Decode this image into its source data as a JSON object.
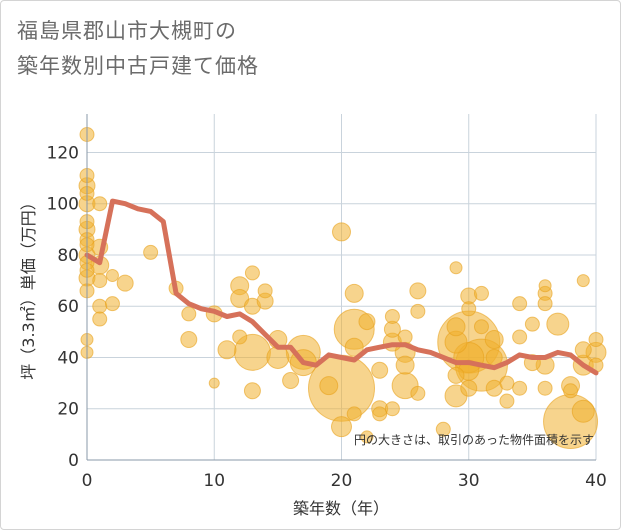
{
  "title_lines": [
    "福島県郡山市大槻町の",
    "築年数別中古戸建て価格"
  ],
  "chart_data": {
    "type": "scatter",
    "title": "福島県郡山市大槻町の築年数別中古戸建て価格",
    "xlabel": "築年数（年）",
    "ylabel": "坪（3.3㎡）単価（万円）",
    "xlim": [
      0,
      40
    ],
    "ylim": [
      0,
      135
    ],
    "x_ticks": [
      0,
      10,
      20,
      30,
      40
    ],
    "y_ticks": [
      0,
      20,
      40,
      60,
      80,
      100,
      120
    ],
    "grid": true,
    "note": "円の大きさは、取引のあった物件面積を示す",
    "colors": {
      "bubble": "#f0b030",
      "line": "#d6715a",
      "grid": "#c9d3dc"
    },
    "series": [
      {
        "kind": "line",
        "x": [
          0,
          1,
          2,
          3,
          4,
          5,
          6,
          7,
          8,
          9,
          10,
          11,
          12,
          13,
          14,
          15,
          16,
          17,
          18,
          19,
          20,
          21,
          22,
          23,
          24,
          25,
          26,
          27,
          28,
          29,
          30,
          31,
          32,
          33,
          34,
          35,
          36,
          37,
          38,
          39,
          40
        ],
        "y": [
          80,
          77,
          101,
          100,
          98,
          97,
          93,
          65,
          61,
          59,
          58,
          56,
          57,
          54,
          49,
          44,
          44,
          38,
          37,
          41,
          40,
          39,
          43,
          44,
          45,
          45,
          43,
          42,
          40,
          38,
          38,
          37,
          36,
          38,
          41,
          40,
          40,
          42,
          41,
          37,
          34
        ]
      },
      {
        "kind": "bubble",
        "points": [
          {
            "x": 0,
            "y": 127,
            "s": 7
          },
          {
            "x": 0,
            "y": 111,
            "s": 7
          },
          {
            "x": 0,
            "y": 107,
            "s": 8
          },
          {
            "x": 0,
            "y": 104,
            "s": 7
          },
          {
            "x": 0,
            "y": 100,
            "s": 8
          },
          {
            "x": 0,
            "y": 93,
            "s": 7
          },
          {
            "x": 0,
            "y": 90,
            "s": 8
          },
          {
            "x": 0,
            "y": 86,
            "s": 7
          },
          {
            "x": 0,
            "y": 84,
            "s": 7
          },
          {
            "x": 0,
            "y": 80,
            "s": 8
          },
          {
            "x": 0,
            "y": 77,
            "s": 7
          },
          {
            "x": 0,
            "y": 74,
            "s": 7
          },
          {
            "x": 0,
            "y": 71,
            "s": 8
          },
          {
            "x": 0,
            "y": 66,
            "s": 7
          },
          {
            "x": 0,
            "y": 47,
            "s": 6
          },
          {
            "x": 0,
            "y": 42,
            "s": 6
          },
          {
            "x": 1,
            "y": 100,
            "s": 7
          },
          {
            "x": 1,
            "y": 83,
            "s": 8
          },
          {
            "x": 1,
            "y": 76,
            "s": 9
          },
          {
            "x": 1,
            "y": 70,
            "s": 7
          },
          {
            "x": 1,
            "y": 60,
            "s": 7
          },
          {
            "x": 1,
            "y": 55,
            "s": 7
          },
          {
            "x": 2,
            "y": 61,
            "s": 7
          },
          {
            "x": 2,
            "y": 72,
            "s": 6
          },
          {
            "x": 3,
            "y": 69,
            "s": 8
          },
          {
            "x": 5,
            "y": 81,
            "s": 7
          },
          {
            "x": 7,
            "y": 67,
            "s": 7
          },
          {
            "x": 8,
            "y": 57,
            "s": 7
          },
          {
            "x": 8,
            "y": 47,
            "s": 8
          },
          {
            "x": 10,
            "y": 57,
            "s": 8
          },
          {
            "x": 10,
            "y": 30,
            "s": 5
          },
          {
            "x": 11,
            "y": 43,
            "s": 9
          },
          {
            "x": 12,
            "y": 68,
            "s": 9
          },
          {
            "x": 12,
            "y": 63,
            "s": 9
          },
          {
            "x": 12,
            "y": 48,
            "s": 7
          },
          {
            "x": 13,
            "y": 73,
            "s": 7
          },
          {
            "x": 13,
            "y": 60,
            "s": 8
          },
          {
            "x": 13,
            "y": 42,
            "s": 18
          },
          {
            "x": 13,
            "y": 27,
            "s": 8
          },
          {
            "x": 14,
            "y": 66,
            "s": 7
          },
          {
            "x": 14,
            "y": 62,
            "s": 8
          },
          {
            "x": 15,
            "y": 47,
            "s": 9
          },
          {
            "x": 15,
            "y": 40,
            "s": 11
          },
          {
            "x": 16,
            "y": 31,
            "s": 8
          },
          {
            "x": 17,
            "y": 42,
            "s": 17
          },
          {
            "x": 17,
            "y": 38,
            "s": 13
          },
          {
            "x": 19,
            "y": 29,
            "s": 9
          },
          {
            "x": 20,
            "y": 89,
            "s": 9
          },
          {
            "x": 20,
            "y": 28,
            "s": 33
          },
          {
            "x": 20,
            "y": 13,
            "s": 10
          },
          {
            "x": 21,
            "y": 65,
            "s": 9
          },
          {
            "x": 21,
            "y": 51,
            "s": 20
          },
          {
            "x": 21,
            "y": 44,
            "s": 9
          },
          {
            "x": 21,
            "y": 18,
            "s": 7
          },
          {
            "x": 22,
            "y": 54,
            "s": 8
          },
          {
            "x": 22,
            "y": 9,
            "s": 6
          },
          {
            "x": 23,
            "y": 35,
            "s": 8
          },
          {
            "x": 23,
            "y": 20,
            "s": 8
          },
          {
            "x": 23,
            "y": 18,
            "s": 7
          },
          {
            "x": 24,
            "y": 56,
            "s": 7
          },
          {
            "x": 24,
            "y": 51,
            "s": 8
          },
          {
            "x": 24,
            "y": 46,
            "s": 9
          },
          {
            "x": 24,
            "y": 20,
            "s": 7
          },
          {
            "x": 25,
            "y": 48,
            "s": 7
          },
          {
            "x": 25,
            "y": 42,
            "s": 10
          },
          {
            "x": 25,
            "y": 37,
            "s": 9
          },
          {
            "x": 25,
            "y": 29,
            "s": 13
          },
          {
            "x": 26,
            "y": 66,
            "s": 8
          },
          {
            "x": 26,
            "y": 58,
            "s": 7
          },
          {
            "x": 26,
            "y": 26,
            "s": 7
          },
          {
            "x": 28,
            "y": 12,
            "s": 7
          },
          {
            "x": 29,
            "y": 75,
            "s": 6
          },
          {
            "x": 29,
            "y": 52,
            "s": 9
          },
          {
            "x": 29,
            "y": 46,
            "s": 11
          },
          {
            "x": 29,
            "y": 33,
            "s": 8
          },
          {
            "x": 29,
            "y": 25,
            "s": 11
          },
          {
            "x": 30,
            "y": 64,
            "s": 8
          },
          {
            "x": 30,
            "y": 59,
            "s": 7
          },
          {
            "x": 30,
            "y": 46,
            "s": 31
          },
          {
            "x": 30,
            "y": 40,
            "s": 15
          },
          {
            "x": 30,
            "y": 35,
            "s": 10
          },
          {
            "x": 30,
            "y": 28,
            "s": 8
          },
          {
            "x": 31,
            "y": 65,
            "s": 7
          },
          {
            "x": 31,
            "y": 52,
            "s": 7
          },
          {
            "x": 31,
            "y": 37,
            "s": 26
          },
          {
            "x": 32,
            "y": 47,
            "s": 9
          },
          {
            "x": 32,
            "y": 40,
            "s": 8
          },
          {
            "x": 32,
            "y": 28,
            "s": 8
          },
          {
            "x": 33,
            "y": 30,
            "s": 7
          },
          {
            "x": 33,
            "y": 23,
            "s": 7
          },
          {
            "x": 34,
            "y": 61,
            "s": 7
          },
          {
            "x": 34,
            "y": 48,
            "s": 7
          },
          {
            "x": 34,
            "y": 28,
            "s": 7
          },
          {
            "x": 35,
            "y": 53,
            "s": 7
          },
          {
            "x": 35,
            "y": 38,
            "s": 8
          },
          {
            "x": 36,
            "y": 68,
            "s": 6
          },
          {
            "x": 36,
            "y": 65,
            "s": 7
          },
          {
            "x": 36,
            "y": 61,
            "s": 7
          },
          {
            "x": 36,
            "y": 37,
            "s": 9
          },
          {
            "x": 36,
            "y": 28,
            "s": 7
          },
          {
            "x": 37,
            "y": 53,
            "s": 11
          },
          {
            "x": 38,
            "y": 29,
            "s": 9
          },
          {
            "x": 38,
            "y": 27,
            "s": 7
          },
          {
            "x": 38,
            "y": 15,
            "s": 27
          },
          {
            "x": 39,
            "y": 70,
            "s": 6
          },
          {
            "x": 39,
            "y": 43,
            "s": 8
          },
          {
            "x": 39,
            "y": 37,
            "s": 10
          },
          {
            "x": 39,
            "y": 19,
            "s": 11
          },
          {
            "x": 40,
            "y": 47,
            "s": 7
          },
          {
            "x": 40,
            "y": 42,
            "s": 10
          },
          {
            "x": 40,
            "y": 37,
            "s": 7
          }
        ]
      }
    ]
  }
}
